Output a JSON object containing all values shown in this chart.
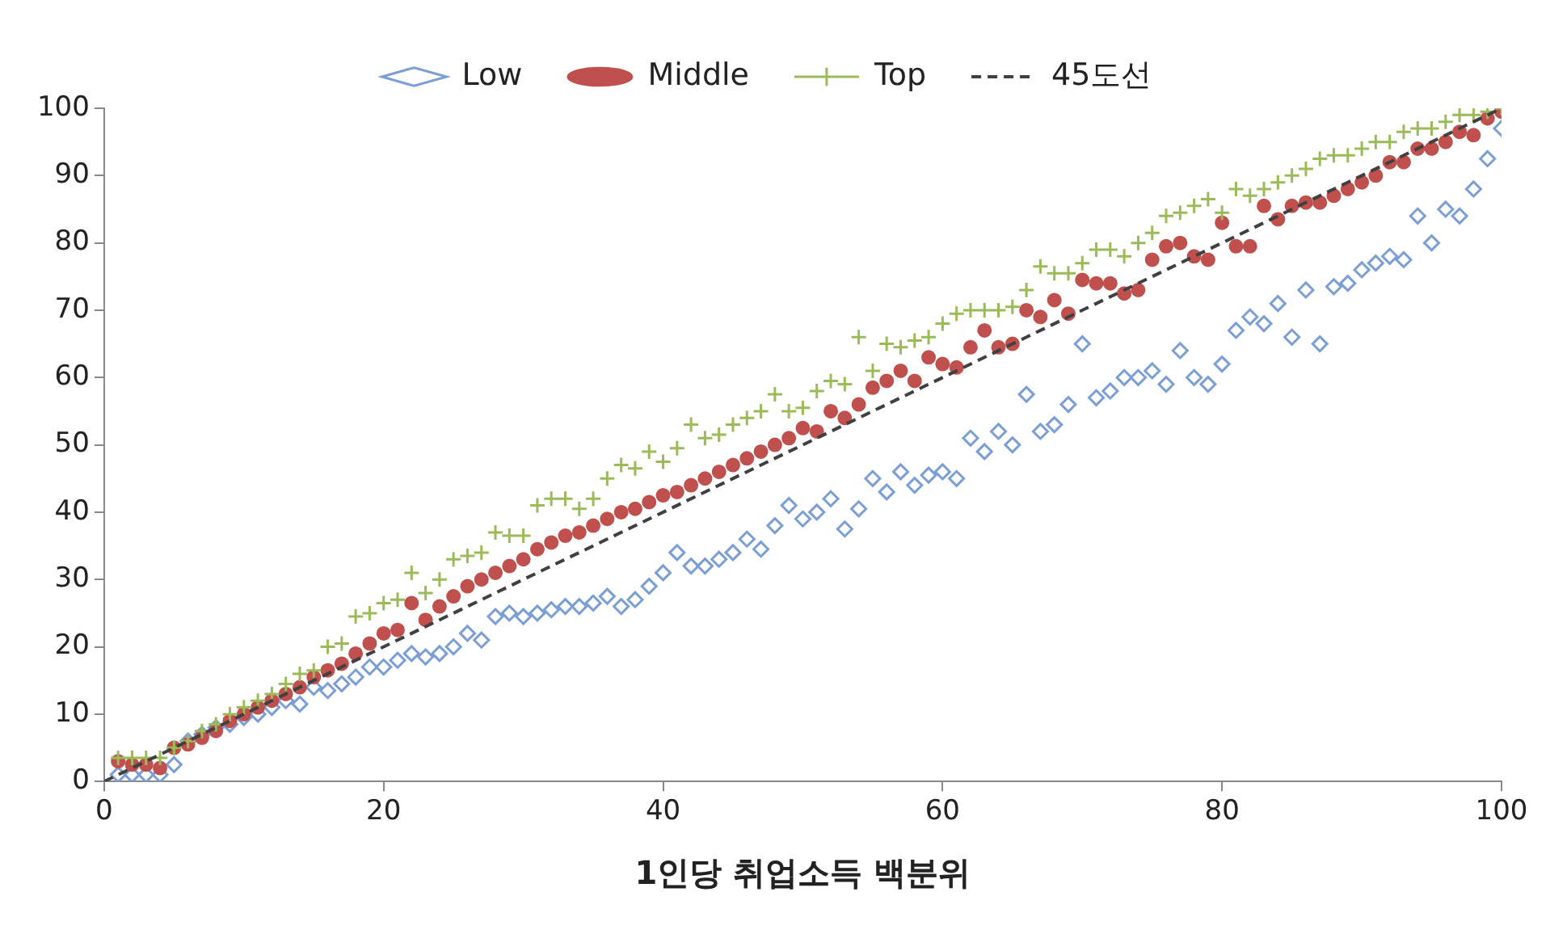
{
  "chart_data": {
    "type": "scatter",
    "xlabel": "1인당 취업소득 백분위",
    "legend": "top",
    "grid": false,
    "x": [
      1,
      2,
      3,
      4,
      5,
      6,
      7,
      8,
      9,
      10,
      11,
      12,
      13,
      14,
      15,
      16,
      17,
      18,
      19,
      20,
      21,
      22,
      23,
      24,
      25,
      26,
      27,
      28,
      29,
      30,
      31,
      32,
      33,
      34,
      35,
      36,
      37,
      38,
      39,
      40,
      41,
      42,
      43,
      44,
      45,
      46,
      47,
      48,
      49,
      50,
      51,
      52,
      53,
      54,
      55,
      56,
      57,
      58,
      59,
      60,
      61,
      62,
      63,
      64,
      65,
      66,
      67,
      68,
      69,
      70,
      71,
      72,
      73,
      74,
      75,
      76,
      77,
      78,
      79,
      80,
      81,
      82,
      83,
      84,
      85,
      86,
      87,
      88,
      89,
      90,
      91,
      92,
      93,
      94,
      95,
      96,
      97,
      98,
      99,
      100
    ],
    "xlim": [
      0,
      100
    ],
    "xticks": [
      0,
      20,
      40,
      60,
      80,
      100
    ],
    "ylim": [
      0,
      100
    ],
    "yticks": [
      0,
      10,
      20,
      30,
      40,
      50,
      60,
      70,
      80,
      90,
      100
    ],
    "series": [
      {
        "name": "Low",
        "marker": "diamond",
        "color": "#7b9fd4",
        "values": [
          1,
          1,
          1,
          1,
          2.5,
          6,
          7,
          8,
          8.5,
          9.5,
          10,
          11,
          12,
          11.5,
          14,
          13.5,
          14.5,
          15.5,
          17,
          17,
          18,
          19,
          18.5,
          19,
          20,
          22,
          21,
          24.5,
          25,
          24.5,
          25,
          25.5,
          26,
          26,
          26.5,
          27.5,
          26,
          27,
          29,
          31,
          34,
          32,
          32,
          33,
          34,
          36,
          34.5,
          38,
          41,
          39,
          40,
          42,
          37.5,
          40.5,
          45,
          43,
          46,
          44,
          45.5,
          46,
          45,
          51,
          49,
          52,
          50,
          57.5,
          52,
          53,
          56,
          65,
          57,
          58,
          60,
          60,
          61,
          59,
          64,
          60,
          59,
          62,
          67,
          69,
          68,
          71,
          66,
          73,
          65,
          73.5,
          74,
          76,
          77,
          78,
          77.5,
          84,
          80,
          85,
          84,
          88,
          92.5,
          97
        ]
      },
      {
        "name": "Middle",
        "marker": "circle",
        "color": "#c0504d",
        "values": [
          3,
          2.5,
          2.5,
          2,
          5,
          5.5,
          6.5,
          7.5,
          9,
          10,
          11,
          12,
          13,
          14,
          15.5,
          16.5,
          17.5,
          19,
          20.5,
          22,
          22.5,
          26.5,
          24,
          26,
          27.5,
          29,
          30,
          31,
          32,
          33,
          34.5,
          35.5,
          36.5,
          37,
          38,
          39,
          40,
          40.5,
          41.5,
          42.5,
          43,
          44,
          45,
          46,
          47,
          48,
          49,
          50,
          51,
          52.5,
          52,
          55,
          54,
          56,
          58.5,
          59.5,
          61,
          59.5,
          63,
          62,
          61.5,
          64.5,
          67,
          64.5,
          65,
          70,
          69,
          71.5,
          69.5,
          74.5,
          74,
          74,
          72.5,
          73,
          77.5,
          79.5,
          80,
          78,
          77.5,
          83,
          79.5,
          79.5,
          85.5,
          83.5,
          85.5,
          86,
          86,
          87,
          88,
          89,
          90,
          92,
          92,
          94,
          94,
          95,
          96.5,
          96,
          98.5,
          99.5
        ]
      },
      {
        "name": "Top",
        "marker": "cross",
        "color": "#9bbb59",
        "values": [
          3.5,
          3.5,
          3.5,
          3.5,
          5,
          6,
          7.5,
          8.5,
          10,
          11,
          12,
          13,
          14.5,
          16,
          16.5,
          20,
          20.5,
          24.5,
          25,
          26.5,
          27,
          31,
          28,
          30,
          33,
          33.5,
          34,
          37,
          36.5,
          36.5,
          41,
          42,
          42,
          40.5,
          42,
          45,
          47,
          46.5,
          49,
          47.5,
          49.5,
          53,
          51,
          51.5,
          53,
          54,
          55,
          57.5,
          55,
          55.5,
          58,
          59.5,
          59,
          66,
          61,
          65,
          64.5,
          65.5,
          66,
          68,
          69.5,
          70,
          70,
          70,
          70.5,
          73,
          76.5,
          75.5,
          75.5,
          77,
          79,
          79,
          78,
          80,
          81.5,
          84,
          84.5,
          85.5,
          86.5,
          84.5,
          88,
          87,
          88,
          89,
          90,
          91,
          92.5,
          93,
          93,
          94,
          95,
          95,
          96.5,
          97,
          97,
          98,
          99,
          99,
          99.5,
          100
        ]
      },
      {
        "name": "45도선",
        "type": "line",
        "marker": "none",
        "line_style": "dashed",
        "color": "#404040",
        "x": [
          0,
          100
        ],
        "values": [
          0,
          100
        ]
      }
    ]
  }
}
